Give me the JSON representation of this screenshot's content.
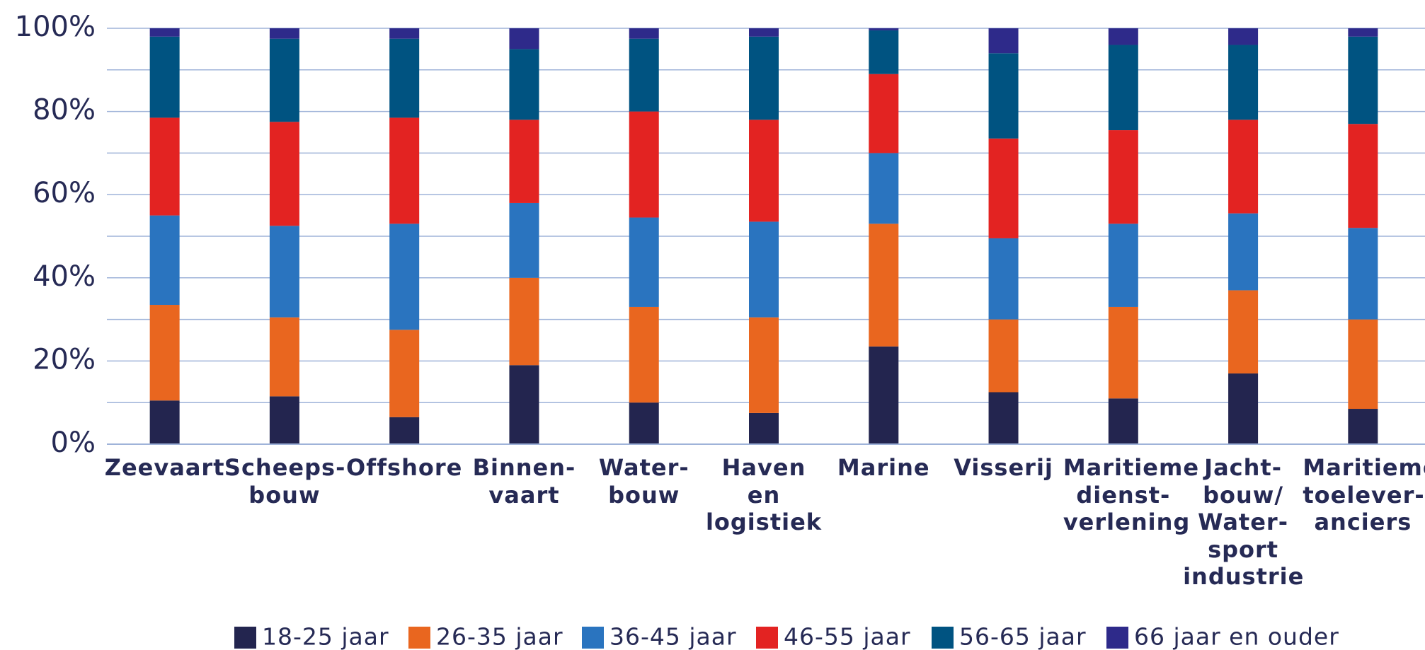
{
  "chart_data": {
    "type": "stacked_bar",
    "categories": [
      "Zeevaart",
      "Scheeps-\nbouw",
      "Offshore",
      "Binnen-\nvaart",
      "Water-\nbouw",
      "Haven\nen\nlogistiek",
      "Marine",
      "Visserij",
      "Maritieme\ndienst-\nverlening",
      "Jacht-\nbouw/\nWater-\nsport\nindustrie",
      "Maritieme\ntoelever-\nanciers"
    ],
    "series": [
      {
        "name": "18-25 jaar",
        "color": "#23254f",
        "values": [
          10.5,
          11.5,
          6.5,
          19,
          10,
          7.5,
          23.5,
          12.5,
          11,
          17,
          8.5
        ]
      },
      {
        "name": "26-35 jaar",
        "color": "#e9661f",
        "values": [
          23,
          19,
          21,
          21,
          23,
          23,
          29.5,
          17.5,
          22,
          20,
          21.5
        ]
      },
      {
        "name": "36-45 jaar",
        "color": "#2a74bf",
        "values": [
          21.5,
          22,
          25.5,
          18,
          21.5,
          23,
          17,
          19.5,
          20,
          18.5,
          22
        ]
      },
      {
        "name": "46-55 jaar",
        "color": "#e32322",
        "values": [
          23.5,
          25,
          25.5,
          20,
          25.5,
          24.5,
          19,
          24,
          22.5,
          22.5,
          25
        ]
      },
      {
        "name": "56-65 jaar",
        "color": "#005381",
        "values": [
          19.5,
          20,
          19,
          17,
          17.5,
          20,
          10.5,
          20.5,
          20.5,
          18,
          21
        ]
      },
      {
        "name": "66 jaar en ouder",
        "color": "#2e2a8a",
        "values": [
          2,
          2.5,
          2.5,
          5,
          2.5,
          2,
          0.5,
          6,
          4,
          4,
          2
        ]
      }
    ],
    "ylim": [
      0,
      100
    ],
    "yticks": [
      {
        "value": 0,
        "label": "0%"
      },
      {
        "value": 20,
        "label": "20%"
      },
      {
        "value": 40,
        "label": "40%"
      },
      {
        "value": 60,
        "label": "60%"
      },
      {
        "value": 80,
        "label": "80%"
      },
      {
        "value": 100,
        "label": "100%"
      }
    ],
    "grid_yticks": [
      0,
      10,
      20,
      30,
      40,
      50,
      60,
      70,
      80,
      90,
      100
    ],
    "grid": true,
    "legend": "bottom"
  }
}
